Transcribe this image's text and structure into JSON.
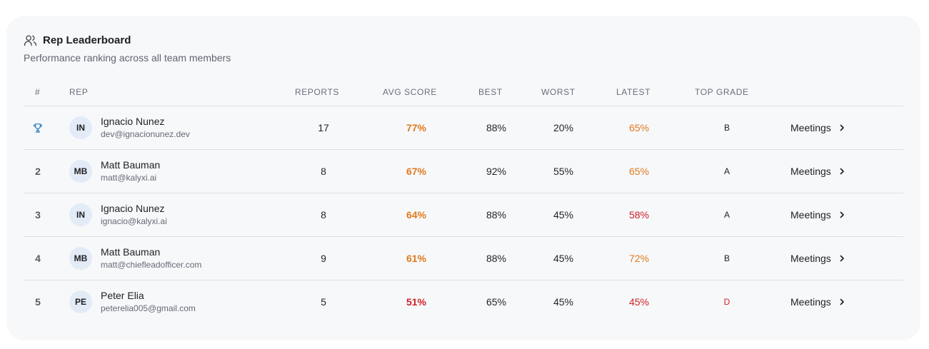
{
  "header": {
    "title": "Rep Leaderboard",
    "subtitle": "Performance ranking across all team members"
  },
  "columns": {
    "rank": "#",
    "rep": "REP",
    "reports": "REPORTS",
    "avg_score": "AVG SCORE",
    "best": "BEST",
    "worst": "WORST",
    "latest": "LATEST",
    "top_grade": "TOP GRADE"
  },
  "rows": [
    {
      "rank": "",
      "rank_icon": "trophy-icon",
      "initials": "IN",
      "name": "Ignacio Nunez",
      "email": "dev@ignacionunez.dev",
      "reports": "17",
      "avg": "77%",
      "best": "88%",
      "worst": "20%",
      "latest": "65%",
      "grade": "B",
      "action": "Meetings",
      "avg_color": "#e07a1f",
      "latest_color": "#e07a1f",
      "grade_color": "#1c1f24"
    },
    {
      "rank": "2",
      "initials": "MB",
      "name": "Matt Bauman",
      "email": "matt@kalyxi.ai",
      "reports": "8",
      "avg": "67%",
      "best": "92%",
      "worst": "55%",
      "latest": "65%",
      "grade": "A",
      "action": "Meetings",
      "avg_color": "#e07a1f",
      "latest_color": "#e07a1f",
      "grade_color": "#1c1f24"
    },
    {
      "rank": "3",
      "initials": "IN",
      "name": "Ignacio Nunez",
      "email": "ignacio@kalyxi.ai",
      "reports": "8",
      "avg": "64%",
      "best": "88%",
      "worst": "45%",
      "latest": "58%",
      "grade": "A",
      "action": "Meetings",
      "avg_color": "#e07a1f",
      "latest_color": "#cf2128",
      "grade_color": "#1c1f24"
    },
    {
      "rank": "4",
      "initials": "MB",
      "name": "Matt Bauman",
      "email": "matt@chiefleadofficer.com",
      "reports": "9",
      "avg": "61%",
      "best": "88%",
      "worst": "45%",
      "latest": "72%",
      "grade": "B",
      "action": "Meetings",
      "avg_color": "#e07a1f",
      "latest_color": "#e07a1f",
      "grade_color": "#1c1f24"
    },
    {
      "rank": "5",
      "initials": "PE",
      "name": "Peter Elia",
      "email": "peterelia005@gmail.com",
      "reports": "5",
      "avg": "51%",
      "best": "65%",
      "worst": "45%",
      "latest": "45%",
      "grade": "D",
      "action": "Meetings",
      "avg_color": "#cf2128",
      "latest_color": "#cf2128",
      "grade_color": "#cf2128"
    }
  ]
}
